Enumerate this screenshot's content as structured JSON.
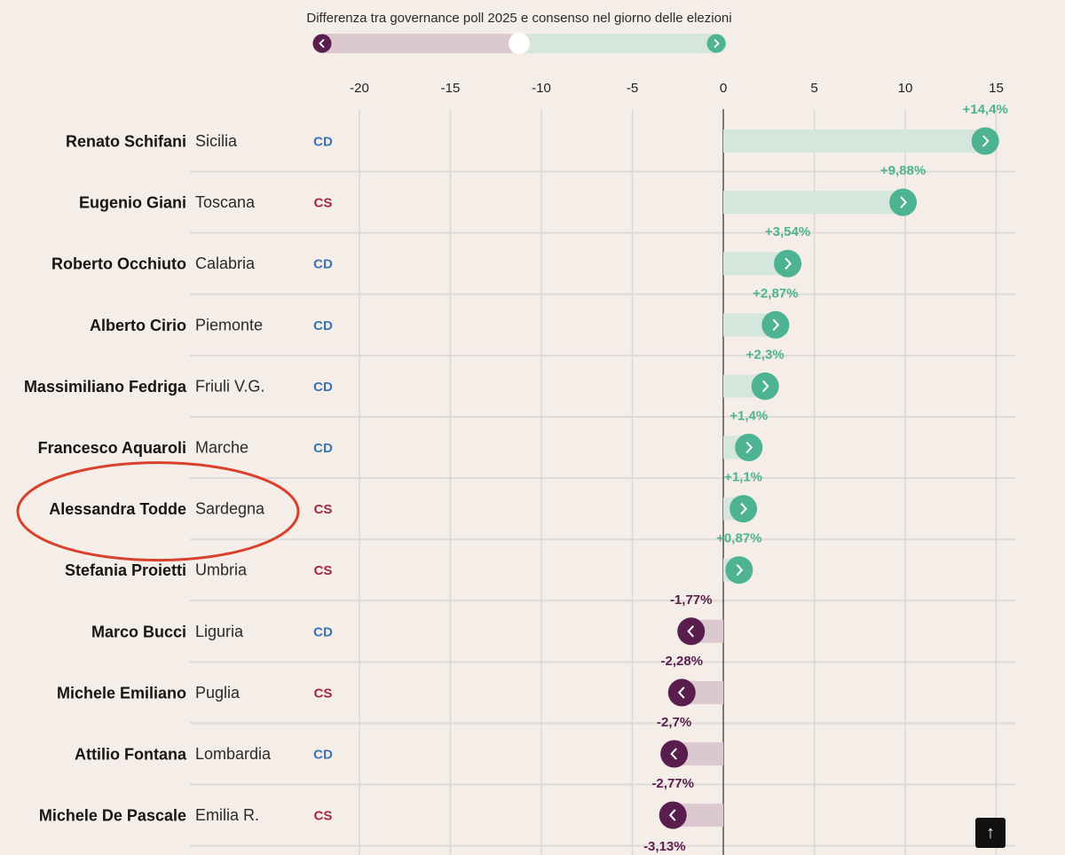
{
  "chart_data": {
    "type": "bar",
    "title": "Differenza tra governance poll 2025 e consenso nel giorno delle elezioni",
    "x_ticks": [
      -20,
      -15,
      -10,
      -5,
      0,
      5,
      10,
      15
    ],
    "xlim": [
      -20,
      15
    ],
    "colors": {
      "positive": "#4db392",
      "positive_bar": "#d5e6dc",
      "negative": "#5a1e4e",
      "negative_bar": "#dcc9d0",
      "cd": "#3a74b7",
      "cs": "#a3283d",
      "highlight": "#d9412c"
    },
    "highlighted": "Alessandra Todde",
    "rows": [
      {
        "name": "Renato Schifani",
        "region": "Sicilia",
        "party": "CD",
        "value": 14.4,
        "label": "+14,4%"
      },
      {
        "name": "Eugenio Giani",
        "region": "Toscana",
        "party": "CS",
        "value": 9.88,
        "label": "+9,88%"
      },
      {
        "name": "Roberto Occhiuto",
        "region": "Calabria",
        "party": "CD",
        "value": 3.54,
        "label": "+3,54%"
      },
      {
        "name": "Alberto Cirio",
        "region": "Piemonte",
        "party": "CD",
        "value": 2.87,
        "label": "+2,87%"
      },
      {
        "name": "Massimiliano Fedriga",
        "region": "Friuli V.G.",
        "party": "CD",
        "value": 2.3,
        "label": "+2,3%"
      },
      {
        "name": "Francesco Aquaroli",
        "region": "Marche",
        "party": "CD",
        "value": 1.4,
        "label": "+1,4%"
      },
      {
        "name": "Alessandra Todde",
        "region": "Sardegna",
        "party": "CS",
        "value": 1.1,
        "label": "+1,1%"
      },
      {
        "name": "Stefania Proietti",
        "region": "Umbria",
        "party": "CS",
        "value": 0.87,
        "label": "+0,87%"
      },
      {
        "name": "Marco Bucci",
        "region": "Liguria",
        "party": "CD",
        "value": -1.77,
        "label": "-1,77%"
      },
      {
        "name": "Michele Emiliano",
        "region": "Puglia",
        "party": "CS",
        "value": -2.28,
        "label": "-2,28%"
      },
      {
        "name": "Attilio Fontana",
        "region": "Lombardia",
        "party": "CD",
        "value": -2.7,
        "label": "-2,7%"
      },
      {
        "name": "Michele De Pascale",
        "region": "Emilia R.",
        "party": "CS",
        "value": -2.77,
        "label": "-2,77%"
      }
    ],
    "partial_value_label": "-3,13%"
  },
  "ui": {
    "scroll_top_icon": "arrow-up-icon",
    "scroll_top_glyph": "↑"
  }
}
